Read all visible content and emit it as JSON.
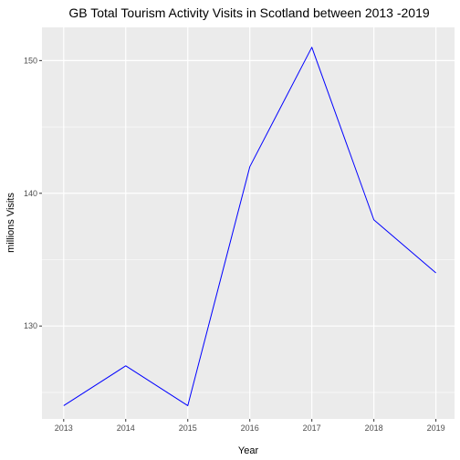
{
  "chart_data": {
    "type": "line",
    "title": "GB Total Tourism Activity Visits in Scotland between 2013 -2019",
    "xlabel": "Year",
    "ylabel": "millions Visits",
    "x": [
      2013,
      2014,
      2015,
      2016,
      2017,
      2018,
      2019
    ],
    "xticks": [
      "2013",
      "2014",
      "2015",
      "2016",
      "2017",
      "2018",
      "2019"
    ],
    "yticks": [
      "130",
      "140",
      "150"
    ],
    "ylim": [
      123,
      152.5
    ],
    "series": [
      {
        "values": [
          124,
          127,
          124,
          142,
          151,
          138,
          134
        ],
        "color": "#0000ff"
      }
    ],
    "grid": true,
    "panel_background": "#ebebeb",
    "gridline_color": "#ffffff"
  }
}
